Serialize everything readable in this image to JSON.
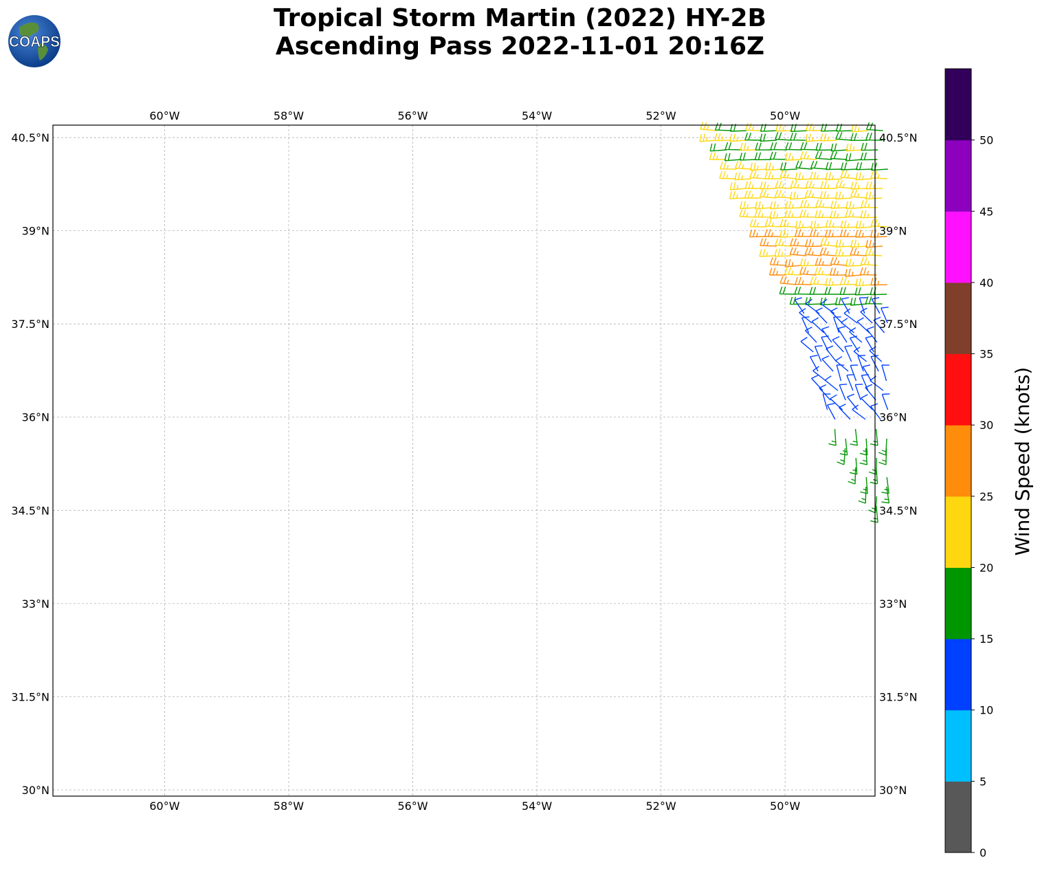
{
  "header": {
    "title_line1": "Tropical Storm Martin (2022) HY-2B",
    "title_line2": "Ascending Pass 2022-11-01 20:16Z"
  },
  "logo": {
    "text": "COAPS"
  },
  "map": {
    "lon_ticks": [
      "60°W",
      "58°W",
      "56°W",
      "54°W",
      "52°W",
      "50°W"
    ],
    "lat_ticks": [
      "30°N",
      "31.5°N",
      "33°N",
      "34.5°N",
      "36°N",
      "37.5°N",
      "39°N",
      "40.5°N"
    ],
    "lon_range": [
      -61.8,
      -48.55
    ],
    "lat_range": [
      29.9,
      40.7
    ],
    "grid": true
  },
  "colorbar": {
    "label": "Wind Speed (knots)",
    "ticks": [
      "0",
      "5",
      "10",
      "15",
      "20",
      "25",
      "30",
      "35",
      "40",
      "45",
      "50"
    ],
    "colors": [
      "#585858",
      "#00bfff",
      "#0040ff",
      "#009600",
      "#ffd711",
      "#ff8c0a",
      "#ff0f0f",
      "#7f3f2a",
      "#ff11ff",
      "#8c00be",
      "#32005a"
    ]
  },
  "chart_data": {
    "type": "wind_barbs",
    "title": "Tropical Storm Martin (2022) HY-2B Ascending Pass 2022-11-01 20:16Z",
    "units": "knots",
    "regions": [
      {
        "lat": [
          39.4,
          40.7
        ],
        "speed_kt": 18,
        "direction": "westerly"
      },
      {
        "lat": [
          38.9,
          40.4
        ],
        "speed_kt": 23,
        "direction": "westerly"
      },
      {
        "lat": [
          38.3,
          39.0
        ],
        "speed_kt": 27,
        "direction": "westerly"
      },
      {
        "lat": [
          37.7,
          38.3
        ],
        "speed_kt": 18,
        "direction": "westerly"
      },
      {
        "lat": [
          35.9,
          37.6
        ],
        "speed_kt": 12,
        "direction": "north-westerly"
      },
      {
        "lat": [
          34.5,
          36.0
        ],
        "speed_kt": 17,
        "direction": "southerly"
      }
    ]
  }
}
